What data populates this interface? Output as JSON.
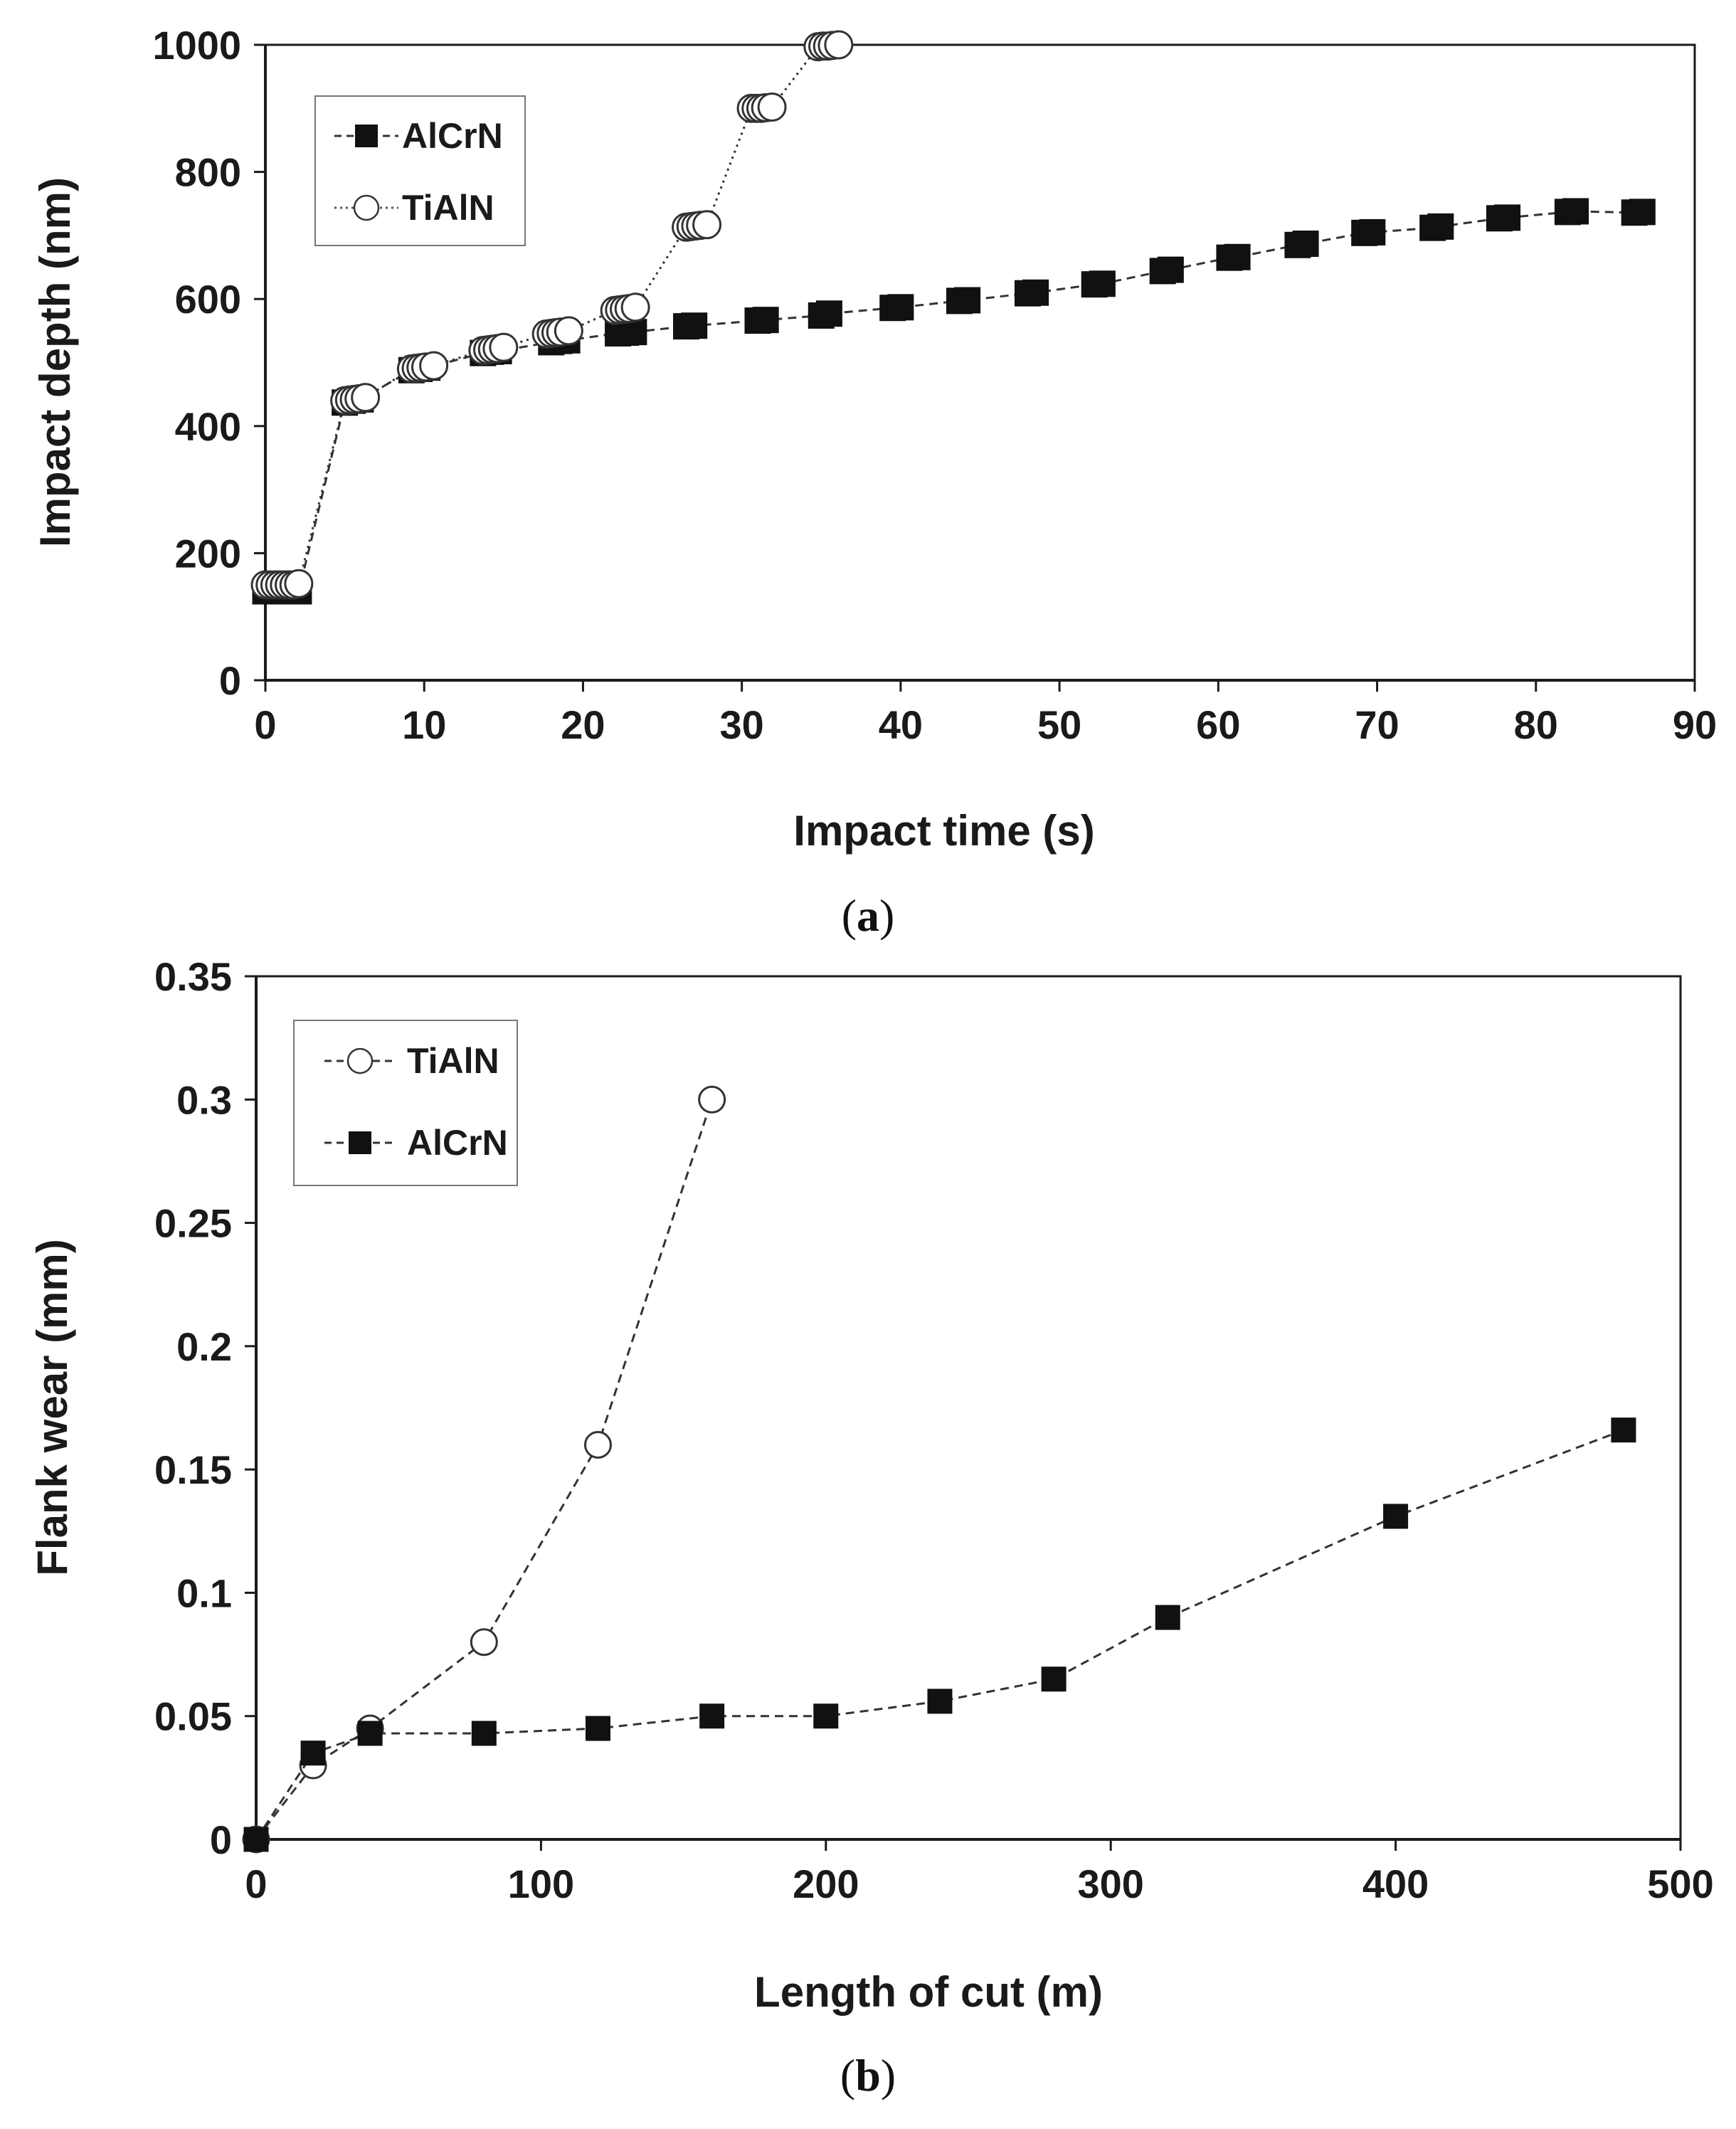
{
  "colors": {
    "axis": "#1a1a1a",
    "marker_fill": "#111111",
    "open_marker_fill": "#ffffff",
    "line": "#333333",
    "grid": "none"
  },
  "chart_data": [
    {
      "id": "a",
      "type": "scatter",
      "caption": {
        "open": "(",
        "letter": "a",
        "close": ")"
      },
      "xlabel": "Impact time (s)",
      "ylabel": "Impact depth (nm)",
      "xlim": [
        0,
        90
      ],
      "ylim": [
        0,
        1000
      ],
      "xticks": [
        0,
        10,
        20,
        30,
        40,
        50,
        60,
        70,
        80,
        90
      ],
      "yticks": [
        0,
        200,
        400,
        600,
        800,
        1000
      ],
      "xtick_labels": [
        "0",
        "10",
        "20",
        "30",
        "40",
        "50",
        "60",
        "70",
        "80",
        "90"
      ],
      "ytick_labels": [
        "0",
        "200",
        "400",
        "600",
        "800",
        "1000"
      ],
      "grid": false,
      "legend": {
        "position": "top-left",
        "order": [
          "AlCrN",
          "TiAlN"
        ]
      },
      "series": [
        {
          "name": "AlCrN",
          "marker": "square-filled",
          "line": "dashed",
          "x": [
            0,
            0.3,
            0.6,
            0.9,
            1.2,
            1.5,
            1.8,
            2.1,
            5.0,
            5.5,
            6.0,
            9.2,
            9.7,
            10.2,
            13.7,
            14.2,
            14.7,
            18.0,
            18.5,
            19.0,
            22.2,
            22.7,
            23.2,
            26.5,
            27.0,
            31.0,
            31.5,
            35.0,
            35.5,
            39.5,
            40.0,
            43.7,
            44.2,
            48.0,
            48.5,
            52.2,
            52.7,
            56.5,
            57.0,
            60.7,
            61.2,
            65.0,
            65.5,
            69.2,
            69.7,
            73.5,
            74.0,
            77.7,
            78.2,
            82.0,
            82.5,
            86.2,
            86.7
          ],
          "y": [
            140,
            140,
            140,
            140,
            140,
            140,
            140,
            140,
            437,
            440,
            442,
            488,
            490,
            492,
            515,
            517,
            518,
            532,
            534,
            535,
            546,
            547,
            548,
            557,
            558,
            566,
            567,
            574,
            577,
            586,
            587,
            597,
            598,
            609,
            610,
            623,
            624,
            644,
            646,
            665,
            666,
            685,
            687,
            704,
            705,
            712,
            714,
            727,
            728,
            737,
            738,
            736,
            737
          ]
        },
        {
          "name": "TiAlN",
          "marker": "circle-open",
          "line": "dotted",
          "x": [
            0,
            0.3,
            0.6,
            0.9,
            1.2,
            1.5,
            1.8,
            2.1,
            5.0,
            5.3,
            5.6,
            5.9,
            6.3,
            9.2,
            9.5,
            9.8,
            10.1,
            10.6,
            13.7,
            14.0,
            14.3,
            14.6,
            15.0,
            17.7,
            18.0,
            18.3,
            18.6,
            19.1,
            22.0,
            22.3,
            22.6,
            22.9,
            23.3,
            26.5,
            26.8,
            27.1,
            27.4,
            27.8,
            30.6,
            30.9,
            31.2,
            31.5,
            31.9,
            34.8,
            35.1,
            35.4,
            35.7,
            36.1
          ],
          "y": [
            150,
            150,
            150,
            150,
            150,
            150,
            150,
            152,
            440,
            441,
            442,
            443,
            445,
            490,
            491,
            492,
            493,
            495,
            519,
            520,
            521,
            522,
            524,
            545,
            546,
            547,
            548,
            550,
            582,
            583,
            584,
            585,
            587,
            713,
            714,
            715,
            716,
            717,
            900,
            900,
            900,
            901,
            902,
            997,
            998,
            998,
            999,
            1000
          ]
        }
      ]
    },
    {
      "id": "b",
      "type": "line",
      "caption": {
        "open": "(",
        "letter": "b",
        "close": ")"
      },
      "xlabel": "Length of cut (m)",
      "ylabel": "Flank wear (mm)",
      "xlim": [
        0,
        500
      ],
      "ylim": [
        0,
        0.35
      ],
      "xticks": [
        0,
        100,
        200,
        300,
        400,
        500
      ],
      "yticks": [
        0,
        0.05,
        0.1,
        0.15,
        0.2,
        0.25,
        0.3,
        0.35
      ],
      "xtick_labels": [
        "0",
        "100",
        "200",
        "300",
        "400",
        "500"
      ],
      "ytick_labels": [
        "0",
        "0.05",
        "0.1",
        "0.15",
        "0.2",
        "0.25",
        "0.3",
        "0.35"
      ],
      "grid": false,
      "legend": {
        "position": "top-left",
        "order": [
          "TiAlN",
          "AlCrN"
        ]
      },
      "series": [
        {
          "name": "TiAlN",
          "marker": "circle-open",
          "line": "dashed",
          "x": [
            0,
            20,
            40,
            80,
            120,
            160
          ],
          "y": [
            0,
            0.03,
            0.045,
            0.08,
            0.16,
            0.3
          ]
        },
        {
          "name": "AlCrN",
          "marker": "square-filled",
          "line": "dashed",
          "x": [
            0,
            20,
            40,
            80,
            120,
            160,
            200,
            240,
            280,
            320,
            400,
            480
          ],
          "y": [
            0,
            0.035,
            0.043,
            0.043,
            0.045,
            0.05,
            0.05,
            0.056,
            0.065,
            0.09,
            0.131,
            0.166
          ]
        }
      ]
    }
  ]
}
